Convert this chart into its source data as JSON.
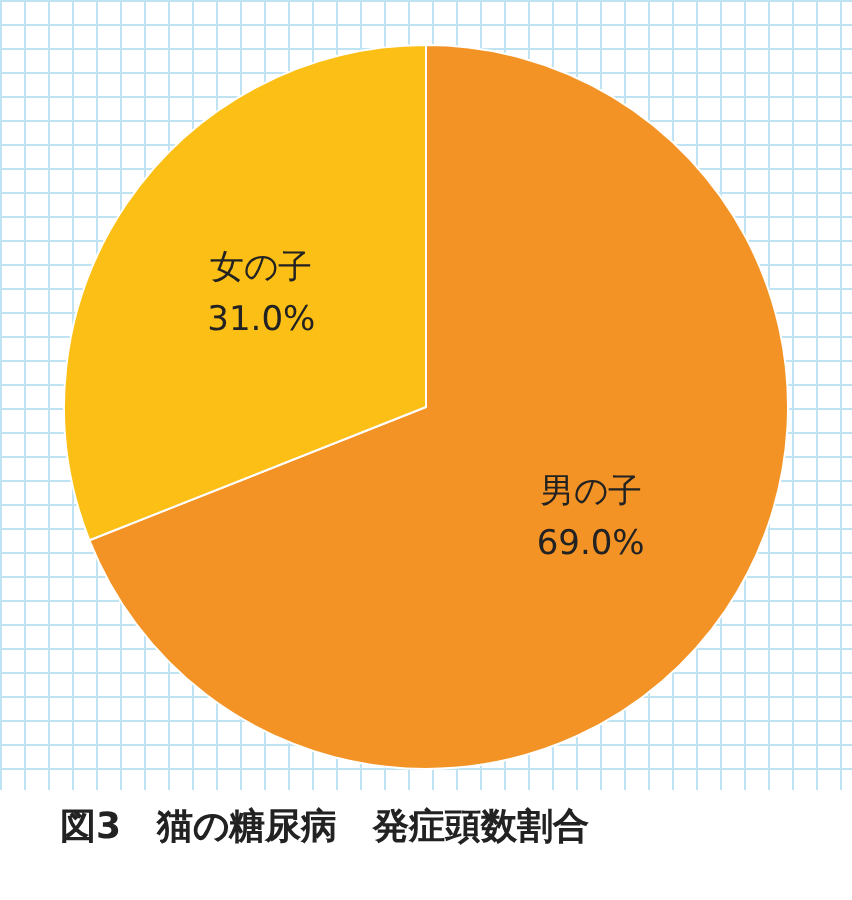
{
  "chart_data": {
    "type": "pie",
    "title": "図3　猫の糖尿病　発症頭数割合",
    "categories": [
      "男の子",
      "女の子"
    ],
    "values": [
      69.0,
      31.0
    ],
    "value_labels": [
      "69.0%",
      "31.0%"
    ],
    "colors": [
      "#f39325",
      "#fbbf16"
    ],
    "legend": false
  }
}
